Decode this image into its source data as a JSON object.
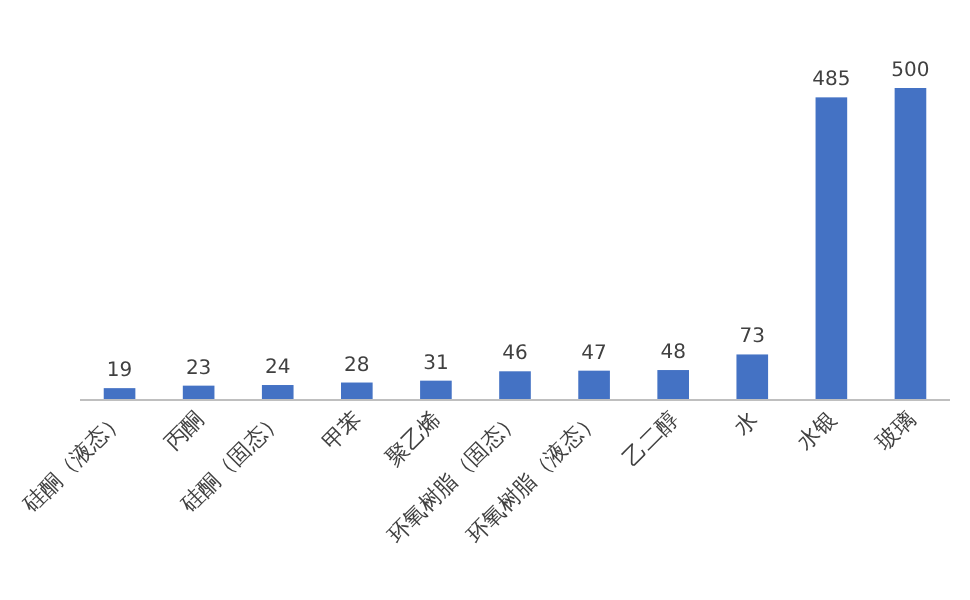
{
  "chart_data": {
    "type": "bar",
    "categories": [
      "硅酮（液态）",
      "丙酮",
      "硅酮（固态）",
      "甲苯",
      "聚乙烯",
      "环氧树脂（固态）",
      "环氧树脂（液态）",
      "乙二醇",
      "水",
      "水银",
      "玻璃"
    ],
    "values": [
      19,
      23,
      24,
      28,
      31,
      46,
      47,
      48,
      73,
      485,
      500
    ],
    "color": "#4472c4",
    "data_labels": true
  }
}
